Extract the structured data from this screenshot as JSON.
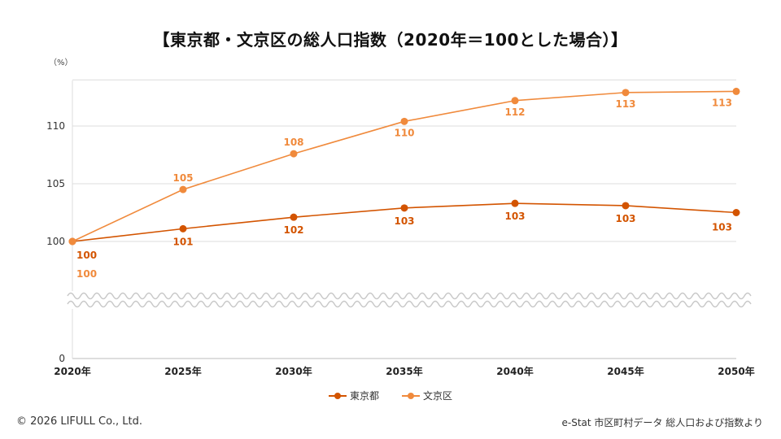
{
  "chart_data": {
    "type": "line",
    "title": "【東京都・文京区の総人口指数（2020年＝100とした場合）】",
    "unit": "（%）",
    "categories": [
      "2020年",
      "2025年",
      "2030年",
      "2035年",
      "2040年",
      "2045年",
      "2050年"
    ],
    "series": [
      {
        "name": "東京都",
        "color": "#d35400",
        "values": [
          100,
          101.1,
          102.1,
          102.9,
          103.3,
          103.1,
          102.5
        ],
        "labels": [
          "100",
          "101",
          "102",
          "103",
          "103",
          "103",
          "103"
        ]
      },
      {
        "name": "文京区",
        "color": "#f08a3c",
        "values": [
          100,
          104.5,
          107.6,
          110.4,
          112.2,
          112.9,
          113.0
        ],
        "labels": [
          "100",
          "105",
          "108",
          "110",
          "112",
          "113",
          "113"
        ]
      }
    ],
    "yticks": [
      "0",
      "100",
      "105",
      "110"
    ],
    "ylim": [
      100,
      114
    ],
    "axis_break": true,
    "grid": true,
    "legend_position": "bottom"
  },
  "footer": {
    "copyright": "© 2026 LIFULL Co., Ltd.",
    "source": "e-Stat 市区町村データ 総人口および指数より"
  }
}
